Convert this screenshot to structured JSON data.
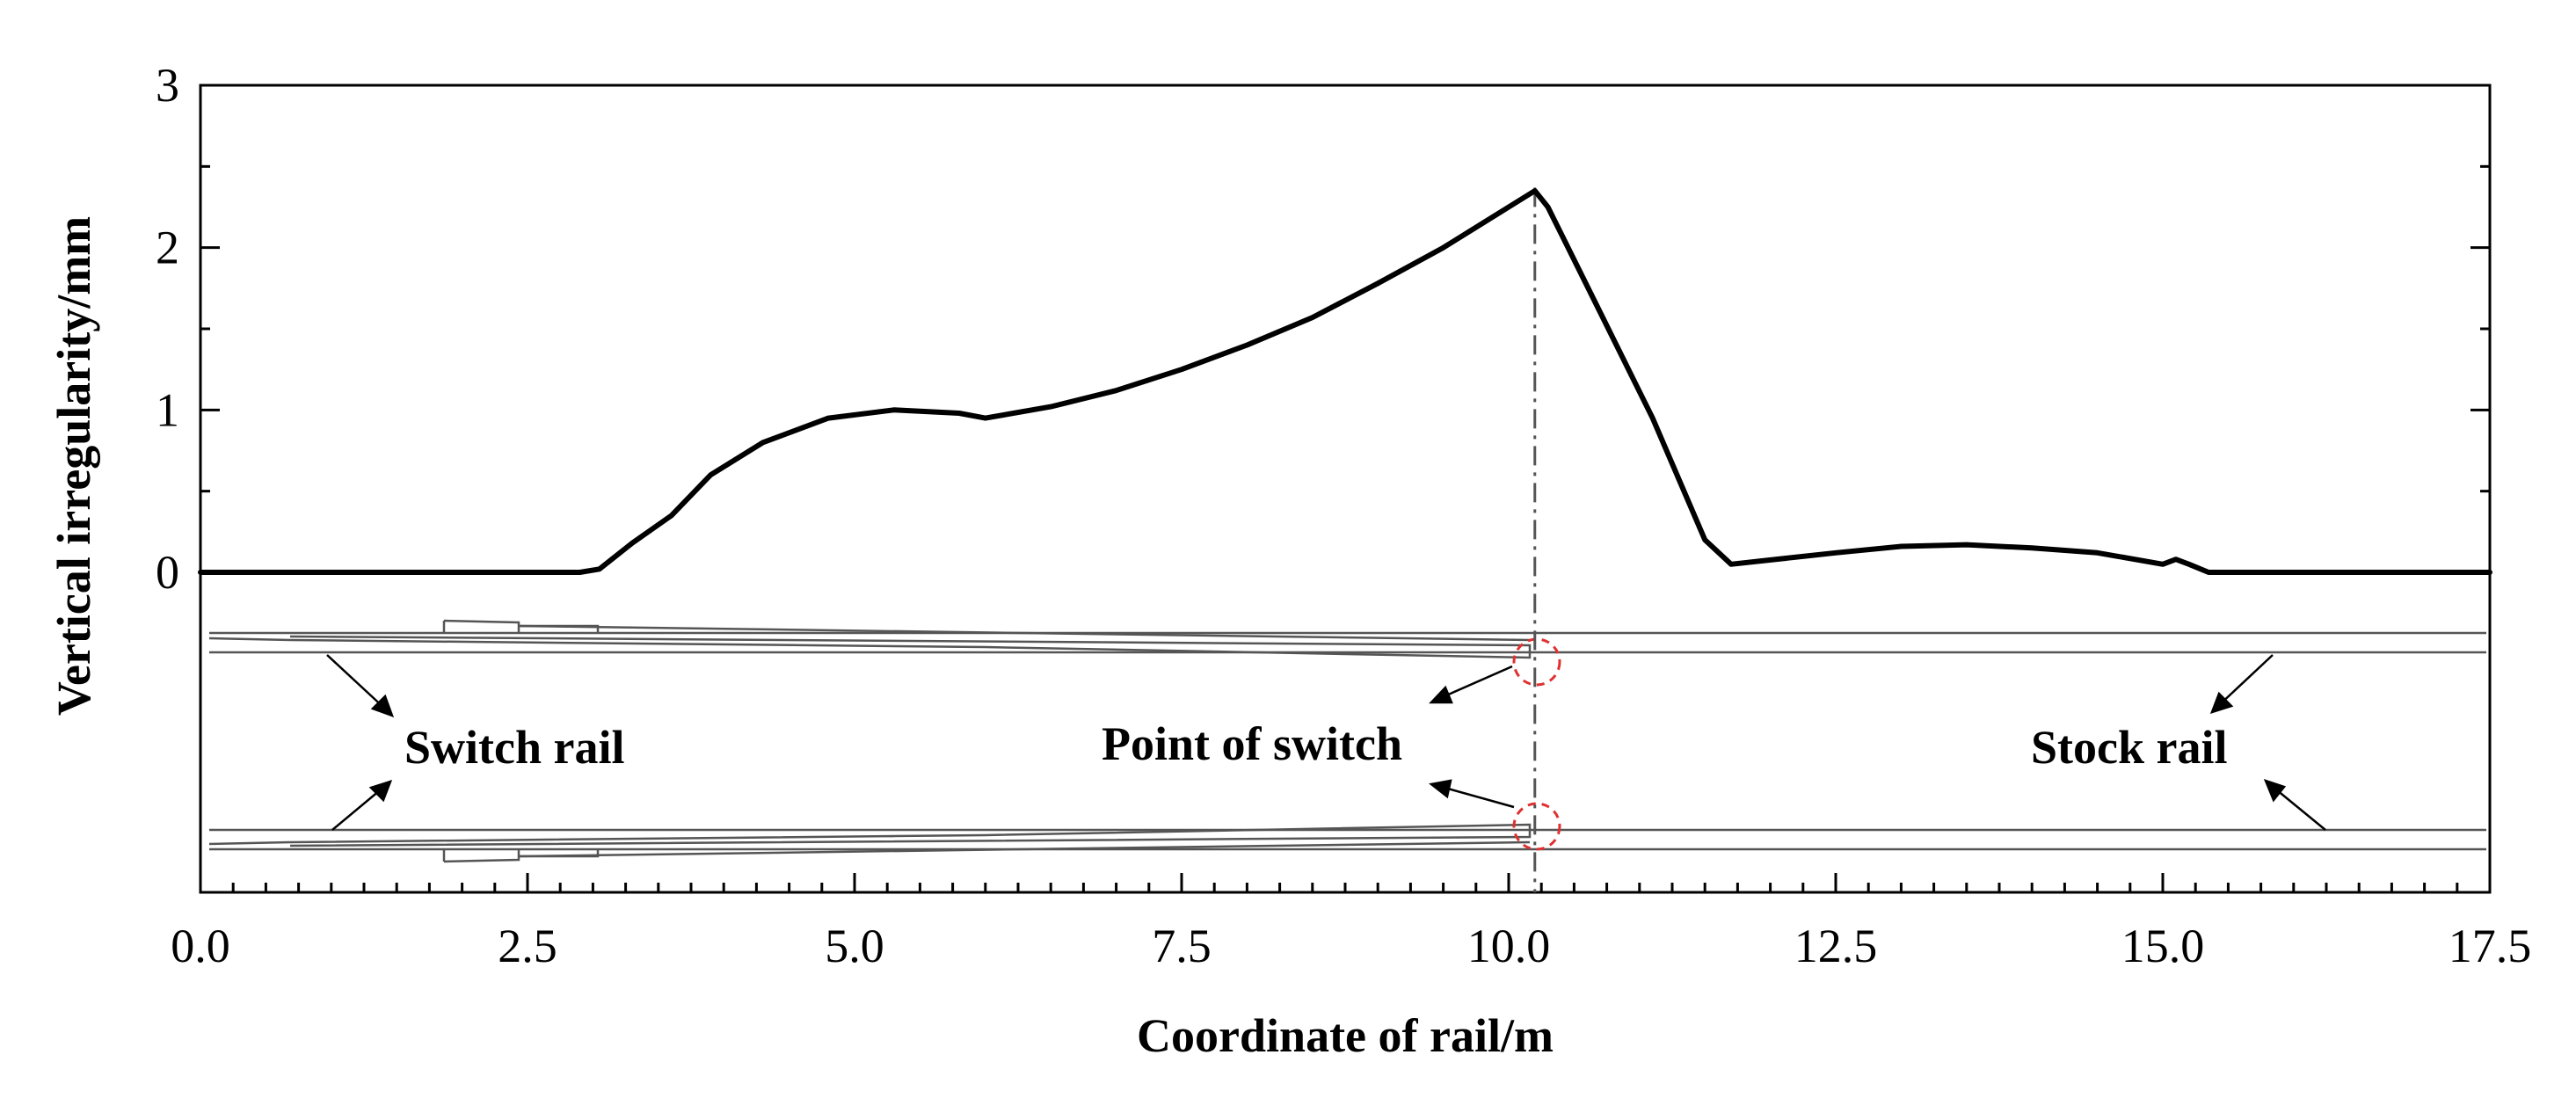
{
  "chart_data": {
    "type": "line",
    "xlabel": "Coordinate of rail/m",
    "ylabel": "Vertical irregularity/mm",
    "xlim": [
      0,
      17.5
    ],
    "ylim": [
      0,
      3
    ],
    "x_ticks": [
      "0.0",
      "2.5",
      "5.0",
      "7.5",
      "10.0",
      "12.5",
      "15.0",
      "17.5"
    ],
    "y_ticks": [
      "0",
      "1",
      "2",
      "3"
    ],
    "grid": false,
    "series": [
      {
        "x": [
          0,
          2.9,
          3.05,
          3.3,
          3.6,
          3.9,
          4.3,
          4.8,
          5.3,
          5.8,
          6.0,
          6.5,
          7.0,
          7.5,
          8.0,
          8.5,
          9.0,
          9.5,
          10.0,
          10.2,
          10.3,
          10.7,
          11.1,
          11.5,
          11.7,
          12.5,
          13.0,
          13.5,
          14.0,
          14.5,
          15.0,
          15.1,
          15.2,
          15.35,
          17.5
        ],
        "y": [
          0,
          0,
          0.02,
          0.18,
          0.35,
          0.6,
          0.8,
          0.95,
          1.0,
          0.98,
          0.95,
          1.02,
          1.12,
          1.25,
          1.4,
          1.57,
          1.78,
          2.0,
          2.25,
          2.35,
          2.25,
          1.6,
          0.95,
          0.2,
          0.05,
          0.12,
          0.16,
          0.17,
          0.15,
          0.12,
          0.05,
          0.08,
          0.05,
          0,
          0
        ],
        "color": "#000000"
      }
    ],
    "reference_line_x": 10.2,
    "annotations": [
      "Switch rail",
      "Point of switch",
      "Stock rail"
    ],
    "marker_color": "#e03030"
  }
}
